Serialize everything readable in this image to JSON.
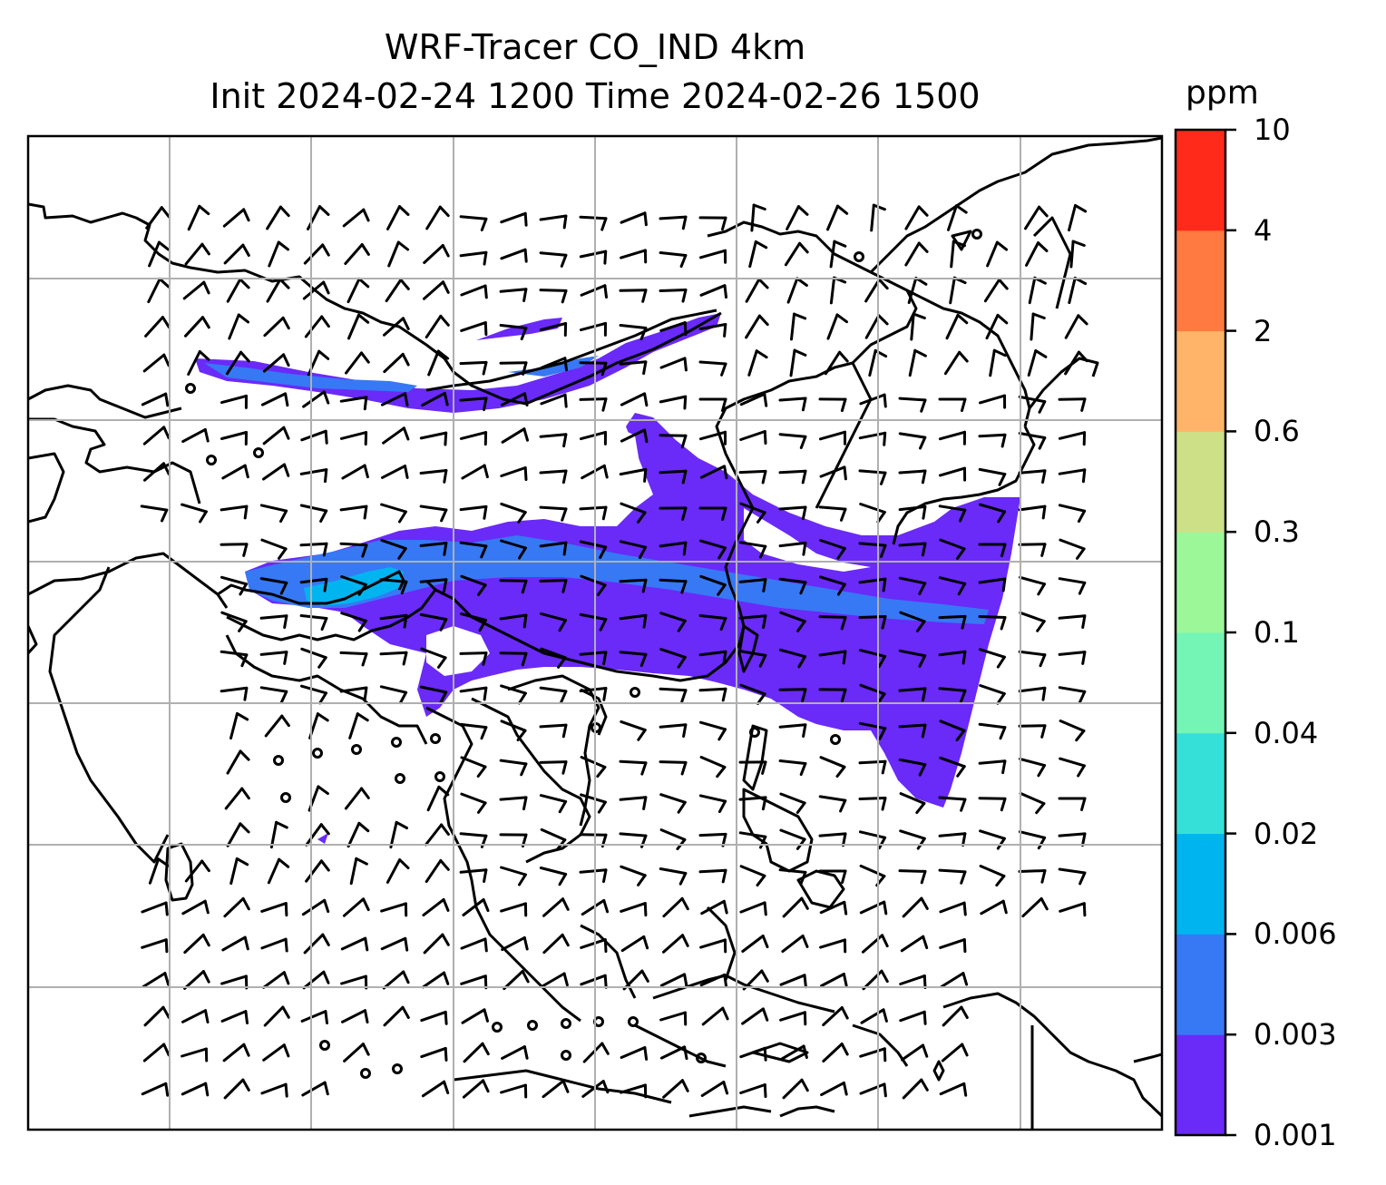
{
  "title": {
    "line1": "WRF-Tracer CO_IND 4km",
    "line2": "Init 2024-02-24 1200 Time 2024-02-26 1500"
  },
  "colorbar": {
    "units": "ppm",
    "levels": [
      "0.001",
      "0.003",
      "0.006",
      "0.02",
      "0.04",
      "0.1",
      "0.3",
      "0.6",
      "2",
      "4",
      "10"
    ],
    "colors": [
      "#6a2af8",
      "#3778f5",
      "#00b4f0",
      "#35e0d8",
      "#74f5b6",
      "#9cf799",
      "#cee087",
      "#ffb469",
      "#ff7a40",
      "#ff2a1a"
    ]
  },
  "map": {
    "grid": true,
    "field_color_low": "#6a2af8",
    "field_color_mid": "#3778f5",
    "field_color_high": "#00b4f0"
  }
}
